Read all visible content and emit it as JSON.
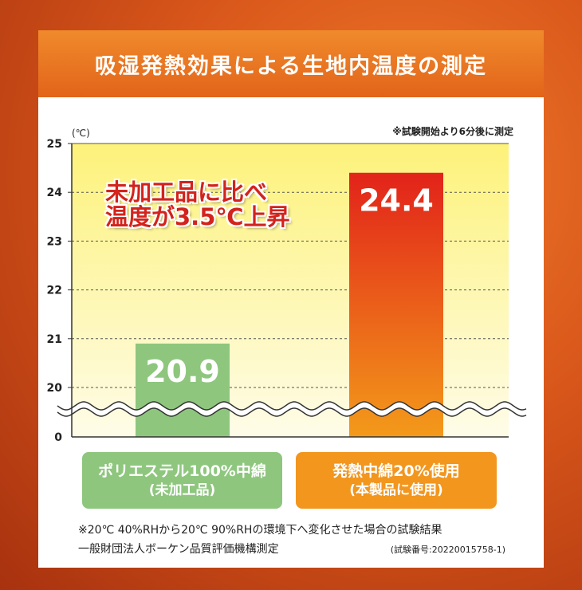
{
  "title": "吸湿発熱効果による生地内温度の測定",
  "unit_label": "(℃)",
  "note_top": "※試験開始より6分後に測定",
  "callout": {
    "line1": "未加工品に比べ",
    "line2": "温度が3.5℃上昇"
  },
  "footnote_1": "※20℃ 40%RHから20℃ 90%RHの環境下へ変化させた場合の試験結果",
  "footnote_2": "一般財団法人ボーケン品質評価機構測定",
  "test_number": "(試験番号:20220015758-1)",
  "categories_display": [
    {
      "line1": "ポリエステル100%中綿",
      "line2": "(未加工品)"
    },
    {
      "line1": "発熱中綿20%使用",
      "line2": "(本製品に使用)"
    }
  ],
  "colors": {
    "bar_a": "#8ec67e",
    "bar_b_top": "#e2231a",
    "bar_b_bottom": "#f39a1a",
    "plot_bg_top": "#fdf27a",
    "plot_bg_bottom": "#fefce8"
  },
  "chart_data": {
    "type": "bar",
    "categories": [
      "ポリエステル100%中綿(未加工品)",
      "発熱中綿20%使用(本製品に使用)"
    ],
    "values": [
      20.9,
      24.4
    ],
    "value_labels": [
      "20.9",
      "24.4"
    ],
    "title": "吸湿発熱効果による生地内温度の測定",
    "ylabel": "(℃)",
    "ylim": [
      19.5,
      25
    ],
    "y_ticks": [
      20,
      21,
      22,
      23,
      24,
      25
    ],
    "axis_break": true,
    "axis_origin_label": "0",
    "grid": true
  }
}
